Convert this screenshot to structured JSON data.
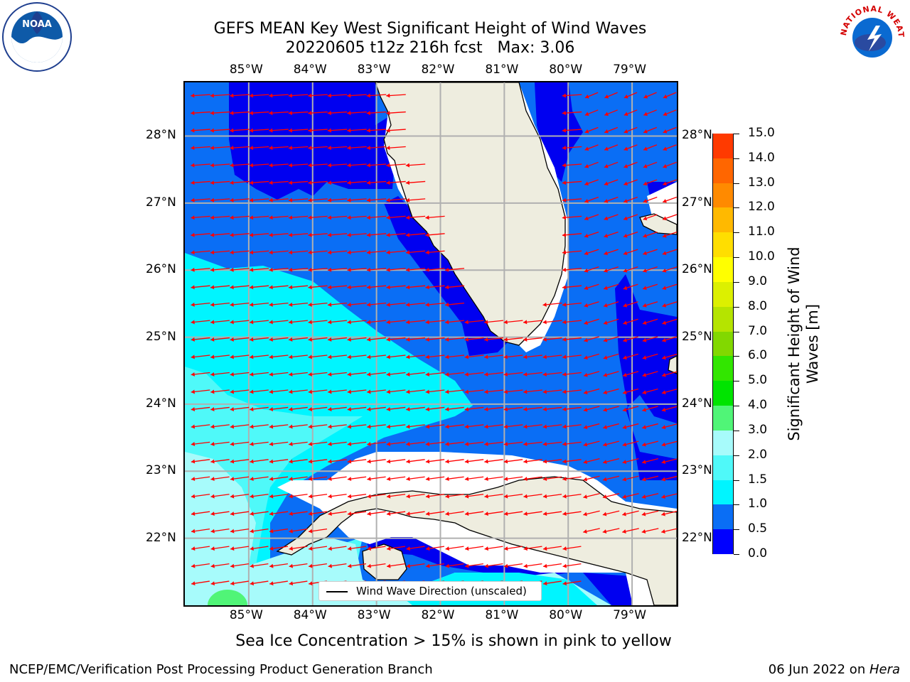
{
  "title": {
    "line1": "GEFS MEAN Key West Significant Height of Wind Waves",
    "line2": "20220605 t12z 216h fcst   Max: 3.06"
  },
  "map": {
    "lon_labels": [
      "85°W",
      "84°W",
      "83°W",
      "82°W",
      "81°W",
      "80°W",
      "79°W"
    ],
    "lat_labels": [
      "28°N",
      "27°N",
      "26°N",
      "25°N",
      "24°N",
      "23°N",
      "22°N"
    ],
    "extent": {
      "lon_min": -86.0,
      "lon_max": -78.3,
      "lat_min": 21.0,
      "lat_max": 28.8
    },
    "legend_text": "Wind Wave Direction (unscaled)",
    "arrow_color": "#ff0000",
    "land_color": "#eeeddf",
    "grid_color": "#b0b0b0"
  },
  "colorbar": {
    "label": "Significant Height of Wind Waves [m]",
    "ticks": [
      "15.0",
      "14.0",
      "13.0",
      "12.0",
      "11.0",
      "10.0",
      "9.0",
      "8.0",
      "7.0",
      "6.0",
      "5.0",
      "4.0",
      "3.0",
      "2.0",
      "1.5",
      "1.0",
      "0.5",
      "0.0"
    ],
    "colors": [
      "#0000ff",
      "#0a6ef5",
      "#00f5ff",
      "#4ff9f9",
      "#a7fbfb",
      "#50f577",
      "#00e400",
      "#32e600",
      "#82d800",
      "#b5e400",
      "#dcf000",
      "#ffff00",
      "#ffde00",
      "#ffb900",
      "#ff8a00",
      "#ff6600",
      "#ff3a00",
      "#ff0000"
    ]
  },
  "footnote": "Sea Ice Concentration > 15% is shown in pink to yellow",
  "credit": "NCEP/EMC/Verification Post Processing Product Generation Branch",
  "date": {
    "text": "06 Jun 2022 on ",
    "machine": "Hera"
  },
  "logos": {
    "left": "NOAA",
    "right": "NATIONAL WEATHER SERVICE"
  }
}
